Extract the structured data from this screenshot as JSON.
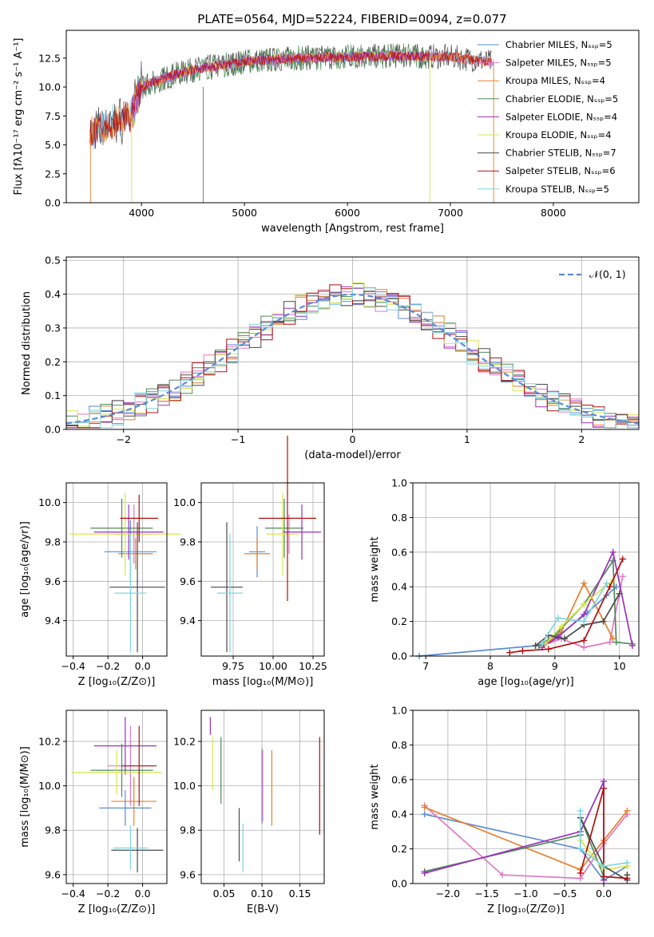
{
  "title": "PLATE=0564, MJD=52224, FIBERID=0094, z=0.077",
  "colors": {
    "chabrier_miles": "#5b8bd6",
    "salpeter_miles": "#e377c2",
    "kroupa_miles": "#e87f2a",
    "chabrier_elodie": "#4f8a5b",
    "salpeter_elodie": "#9b30b8",
    "kroupa_elodie": "#d6e84a",
    "chabrier_stelib": "#4a4a4a",
    "salpeter_stelib": "#b01010",
    "kroupa_stelib": "#7fd6e0",
    "normal_curve": "#5b8bd6"
  },
  "chart_data": [
    {
      "id": "spectrum",
      "type": "line",
      "xlabel": "wavelength [Angstrom, rest frame]",
      "ylabel": "Flux [fλ10⁻¹⁷ erg cm⁻² s⁻¹ A⁻¹]",
      "xlim": [
        3270,
        8830
      ],
      "ylim": [
        0,
        14.9
      ],
      "xticks": [
        4000,
        5000,
        6000,
        7000,
        8000
      ],
      "yticks": [
        "0.0",
        "2.5",
        "5.0",
        "7.5",
        "10.0",
        "12.5"
      ],
      "legend_position": "top-right",
      "legend": [
        {
          "label": "Chabrier MILES, Nₛₛₚ=5",
          "color_key": "chabrier_miles"
        },
        {
          "label": "Salpeter MILES, Nₛₛₚ=5",
          "color_key": "salpeter_miles"
        },
        {
          "label": "Kroupa MILES, Nₛₛₚ=4",
          "color_key": "kroupa_miles"
        },
        {
          "label": "Chabrier ELODIE, Nₛₛₚ=5",
          "color_key": "chabrier_elodie"
        },
        {
          "label": "Salpeter ELODIE, Nₛₛₚ=4",
          "color_key": "salpeter_elodie"
        },
        {
          "label": "Kroupa ELODIE, Nₛₛₚ=4",
          "color_key": "kroupa_elodie"
        },
        {
          "label": "Chabrier STELIB, Nₛₛₚ=7",
          "color_key": "chabrier_stelib"
        },
        {
          "label": "Salpeter STELIB, Nₛₛₚ=6",
          "color_key": "salpeter_stelib"
        },
        {
          "label": "Kroupa STELIB, Nₛₛₚ=5",
          "color_key": "kroupa_stelib"
        }
      ],
      "continuum": {
        "x": [
          3500,
          3700,
          3900,
          4000,
          4300,
          4500,
          5000,
          5500,
          6000,
          6500,
          7000,
          7300,
          7450
        ],
        "y": [
          6.0,
          6.8,
          7.5,
          10.0,
          11.0,
          11.5,
          12.2,
          12.5,
          12.6,
          12.7,
          12.6,
          12.3,
          12.0
        ]
      },
      "model_ranges": [
        [
          3500,
          7420
        ],
        [
          3900,
          7400
        ],
        [
          3500,
          7400
        ],
        [
          3900,
          6800
        ],
        [
          3900,
          6800
        ],
        [
          3900,
          6800
        ],
        [
          3500,
          7400
        ],
        [
          3500,
          7400
        ],
        [
          3500,
          7400
        ]
      ]
    },
    {
      "id": "residual_hist",
      "type": "line",
      "xlabel": "(data-model)/error",
      "ylabel": "Normed distribution",
      "xlim": [
        -2.5,
        2.5
      ],
      "ylim": [
        0,
        0.51
      ],
      "xticks": [
        "−2",
        "−1",
        "0",
        "1",
        "2"
      ],
      "yticks": [
        "0.0",
        "0.1",
        "0.2",
        "0.3",
        "0.4",
        "0.5"
      ],
      "legend": [
        {
          "label": "𝒩(0, 1)",
          "color_key": "normal_curve",
          "style": "dashed"
        }
      ],
      "legend_position": "top-right",
      "bin_width": 0.1
    },
    {
      "id": "age_vs_z",
      "type": "scatter",
      "xlabel": "Z [log₁₀(Z/Z⊙)]",
      "ylabel": "age  [log₁₀(age/yr)]",
      "xlim": [
        -0.44,
        0.14
      ],
      "ylim": [
        9.22,
        10.1
      ],
      "xticks": [
        "−0.4",
        "−0.2",
        "0.0"
      ],
      "yticks": [
        "9.4",
        "9.6",
        "9.8",
        "10.0"
      ],
      "points": [
        {
          "color_key": "chabrier_miles",
          "x": -0.07,
          "xerr": 0.15,
          "y": 9.75,
          "yerr": 0.16
        },
        {
          "color_key": "salpeter_miles",
          "x": -0.05,
          "xerr": 0.1,
          "y": 9.84,
          "yerr": 0.15
        },
        {
          "color_key": "kroupa_miles",
          "x": -0.04,
          "xerr": 0.1,
          "y": 9.74,
          "yerr": 0.08
        },
        {
          "color_key": "chabrier_elodie",
          "x": -0.12,
          "xerr": 0.18,
          "y": 9.87,
          "yerr": 0.15
        },
        {
          "color_key": "salpeter_elodie",
          "x": -0.08,
          "xerr": 0.2,
          "y": 9.85,
          "yerr": 0.14
        },
        {
          "color_key": "kroupa_elodie",
          "x": -0.1,
          "xerr": 0.32,
          "y": 9.84,
          "yerr": 0.21
        },
        {
          "color_key": "chabrier_stelib",
          "x": -0.03,
          "xerr": 0.16,
          "y": 9.57,
          "yerr": 0.33
        },
        {
          "color_key": "salpeter_stelib",
          "x": -0.02,
          "xerr": 0.11,
          "y": 9.92,
          "yerr": 0.12
        },
        {
          "color_key": "kroupa_stelib",
          "x": -0.07,
          "xerr": 0.09,
          "y": 9.54,
          "yerr": 0.3
        }
      ]
    },
    {
      "id": "age_vs_mass",
      "type": "scatter",
      "xlabel": "mass [log₁₀(M/M⊙)]",
      "ylabel": "",
      "xlim": [
        9.55,
        10.32
      ],
      "ylim": [
        9.22,
        10.1
      ],
      "xticks": [
        "9.75",
        "10.00",
        "10.25"
      ],
      "yticks": [
        "9.4",
        "9.6",
        "9.8",
        "10.0"
      ],
      "points": [
        {
          "color_key": "chabrier_miles",
          "x": 9.9,
          "xerr": 0.05,
          "y": 9.75,
          "yerr": 0.13
        },
        {
          "color_key": "salpeter_miles",
          "x": 10.1,
          "xerr": 0.02,
          "y": 9.84,
          "yerr": 0.1
        },
        {
          "color_key": "kroupa_miles",
          "x": 9.9,
          "xerr": 0.08,
          "y": 9.74,
          "yerr": 0.08
        },
        {
          "color_key": "chabrier_elodie",
          "x": 10.07,
          "xerr": 0.12,
          "y": 9.87,
          "yerr": 0.15
        },
        {
          "color_key": "salpeter_elodie",
          "x": 10.18,
          "xerr": 0.12,
          "y": 9.85,
          "yerr": 0.14
        },
        {
          "color_key": "kroupa_elodie",
          "x": 10.06,
          "xerr": 0.1,
          "y": 9.84,
          "yerr": 0.21
        },
        {
          "color_key": "chabrier_stelib",
          "x": 9.71,
          "xerr": 0.1,
          "y": 9.57,
          "yerr": 0.33
        },
        {
          "color_key": "salpeter_stelib",
          "x": 10.09,
          "xerr": 0.18,
          "y": 9.92,
          "yerr": 0.42
        },
        {
          "color_key": "kroupa_stelib",
          "x": 9.73,
          "xerr": 0.08,
          "y": 9.54,
          "yerr": 0.3
        }
      ]
    },
    {
      "id": "mass_weight_vs_age",
      "type": "line",
      "xlabel": "age  [log₁₀(age/yr)]",
      "ylabel": "mass weight",
      "xlim": [
        6.8,
        10.3
      ],
      "ylim": [
        0,
        1.0
      ],
      "xticks": [
        "7",
        "8",
        "9",
        "10"
      ],
      "yticks": [
        "0.0",
        "0.2",
        "0.4",
        "0.6",
        "0.8",
        "1.0"
      ],
      "series": [
        {
          "color_key": "chabrier_miles",
          "x": [
            6.9,
            8.7,
            9.0,
            9.5,
            9.8,
            9.95
          ],
          "y": [
            0.0,
            0.06,
            0.1,
            0.25,
            0.35,
            0.4
          ]
        },
        {
          "color_key": "salpeter_miles",
          "x": [
            8.8,
            9.1,
            9.45,
            9.85,
            10.05
          ],
          "y": [
            0.06,
            0.1,
            0.05,
            0.08,
            0.46
          ]
        },
        {
          "color_key": "kroupa_miles",
          "x": [
            8.8,
            9.1,
            9.45,
            9.9
          ],
          "y": [
            0.05,
            0.14,
            0.42,
            0.1
          ]
        },
        {
          "color_key": "chabrier_elodie",
          "x": [
            8.75,
            9.0,
            9.45,
            9.9,
            9.95,
            10.2
          ],
          "y": [
            0.06,
            0.12,
            0.3,
            0.55,
            0.08,
            0.07
          ]
        },
        {
          "color_key": "salpeter_elodie",
          "x": [
            8.8,
            9.05,
            9.45,
            9.9,
            10.2
          ],
          "y": [
            0.05,
            0.11,
            0.24,
            0.6,
            0.06
          ]
        },
        {
          "color_key": "kroupa_elodie",
          "x": [
            8.85,
            9.1,
            9.45,
            9.9
          ],
          "y": [
            0.07,
            0.17,
            0.3,
            0.44
          ]
        },
        {
          "color_key": "chabrier_stelib",
          "x": [
            8.7,
            8.9,
            9.15,
            9.45,
            9.75,
            10.0
          ],
          "y": [
            0.06,
            0.12,
            0.1,
            0.18,
            0.2,
            0.36
          ]
        },
        {
          "color_key": "salpeter_stelib",
          "x": [
            8.3,
            8.5,
            8.9,
            9.45,
            9.85,
            10.05
          ],
          "y": [
            0.02,
            0.03,
            0.04,
            0.09,
            0.4,
            0.56
          ]
        },
        {
          "color_key": "kroupa_stelib",
          "x": [
            8.8,
            9.05,
            9.45,
            9.8
          ],
          "y": [
            0.07,
            0.22,
            0.2,
            0.42
          ]
        }
      ]
    },
    {
      "id": "mass_vs_z",
      "type": "scatter",
      "xlabel": "Z [log₁₀(Z/Z⊙)]",
      "ylabel": "mass [log₁₀(M/M⊙)]",
      "xlim": [
        -0.44,
        0.14
      ],
      "ylim": [
        9.56,
        10.34
      ],
      "xticks": [
        "−0.4",
        "−0.2",
        "0.0"
      ],
      "yticks": [
        "9.6",
        "9.8",
        "10.0",
        "10.2"
      ],
      "points": [
        {
          "color_key": "chabrier_miles",
          "x": -0.1,
          "xerr": 0.15,
          "y": 9.9,
          "yerr": 0.08
        },
        {
          "color_key": "salpeter_miles",
          "x": -0.07,
          "xerr": 0.13,
          "y": 10.09,
          "yerr": 0.18
        },
        {
          "color_key": "kroupa_miles",
          "x": -0.05,
          "xerr": 0.13,
          "y": 9.93,
          "yerr": 0.11
        },
        {
          "color_key": "chabrier_elodie",
          "x": -0.12,
          "xerr": 0.18,
          "y": 10.07,
          "yerr": 0.12
        },
        {
          "color_key": "salpeter_elodie",
          "x": -0.1,
          "xerr": 0.18,
          "y": 10.18,
          "yerr": 0.13
        },
        {
          "color_key": "kroupa_elodie",
          "x": -0.15,
          "xerr": 0.26,
          "y": 10.06,
          "yerr": 0.1
        },
        {
          "color_key": "chabrier_stelib",
          "x": -0.03,
          "xerr": 0.15,
          "y": 9.71,
          "yerr": 0.1
        },
        {
          "color_key": "salpeter_stelib",
          "x": -0.02,
          "xerr": 0.1,
          "y": 10.09,
          "yerr": 0.18
        },
        {
          "color_key": "kroupa_stelib",
          "x": -0.07,
          "xerr": 0.1,
          "y": 9.72,
          "yerr": 0.1
        }
      ]
    },
    {
      "id": "mass_vs_ebv",
      "type": "scatter",
      "xlabel": "E(B-V)",
      "ylabel": "",
      "xlim": [
        0.02,
        0.182
      ],
      "ylim": [
        9.56,
        10.34
      ],
      "xticks": [
        "0.05",
        "0.10",
        "0.15"
      ],
      "yticks": [
        "9.6",
        "9.8",
        "10.0",
        "10.2"
      ],
      "points": [
        {
          "color_key": "chabrier_miles",
          "x": 0.1,
          "xerr": 0,
          "y": 10.0,
          "yerr": 0.17
        },
        {
          "color_key": "salpeter_miles",
          "x": 0.101,
          "xerr": 0,
          "y": 10.0,
          "yerr": 0.16
        },
        {
          "color_key": "kroupa_miles",
          "x": 0.113,
          "xerr": 0,
          "y": 9.99,
          "yerr": 0.17
        },
        {
          "color_key": "chabrier_elodie",
          "x": 0.046,
          "xerr": 0,
          "y": 10.07,
          "yerr": 0.15
        },
        {
          "color_key": "salpeter_elodie",
          "x": 0.032,
          "xerr": 0,
          "y": 10.27,
          "yerr": 0.04
        },
        {
          "color_key": "kroupa_elodie",
          "x": 0.035,
          "xerr": 0,
          "y": 10.1,
          "yerr": 0.12
        },
        {
          "color_key": "chabrier_stelib",
          "x": 0.07,
          "xerr": 0,
          "y": 9.78,
          "yerr": 0.12
        },
        {
          "color_key": "salpeter_stelib",
          "x": 0.176,
          "xerr": 0,
          "y": 10.0,
          "yerr": 0.22
        },
        {
          "color_key": "kroupa_stelib",
          "x": 0.075,
          "xerr": 0,
          "y": 9.72,
          "yerr": 0.11
        }
      ]
    },
    {
      "id": "mass_weight_vs_z",
      "type": "line",
      "xlabel": "Z [log₁₀(Z/Z⊙)]",
      "ylabel": "mass weight",
      "xlim": [
        -2.45,
        0.45
      ],
      "ylim": [
        0,
        1.0
      ],
      "xticks": [
        "−2.0",
        "−1.5",
        "−1.0",
        "−0.5",
        "0.0"
      ],
      "yticks": [
        "0.0",
        "0.2",
        "0.4",
        "0.6",
        "0.8",
        "1.0"
      ],
      "series": [
        {
          "color_key": "chabrier_miles",
          "x": [
            -2.3,
            -0.3,
            0.0,
            0.3
          ],
          "y": [
            0.4,
            0.2,
            0.02,
            0.1
          ]
        },
        {
          "color_key": "salpeter_miles",
          "x": [
            -2.3,
            -1.3,
            -0.3,
            0.0,
            0.3
          ],
          "y": [
            0.45,
            0.05,
            0.03,
            0.23,
            0.4
          ]
        },
        {
          "color_key": "kroupa_miles",
          "x": [
            -2.3,
            -0.3,
            0.0,
            0.3
          ],
          "y": [
            0.44,
            0.08,
            0.25,
            0.42
          ]
        },
        {
          "color_key": "chabrier_elodie",
          "x": [
            -2.3,
            -0.3,
            -0.3,
            0.0
          ],
          "y": [
            0.07,
            0.28,
            0.38,
            0.04
          ]
        },
        {
          "color_key": "salpeter_elodie",
          "x": [
            -2.3,
            -0.3,
            0.0,
            0.0
          ],
          "y": [
            0.06,
            0.3,
            0.59,
            0.02
          ]
        },
        {
          "color_key": "kroupa_elodie",
          "x": [
            -0.3,
            0.0,
            0.3
          ],
          "y": [
            0.25,
            0.08,
            0.1
          ]
        },
        {
          "color_key": "chabrier_stelib",
          "x": [
            -0.3,
            0.0,
            0.3,
            0.3
          ],
          "y": [
            0.38,
            0.1,
            0.02,
            0.05
          ]
        },
        {
          "color_key": "salpeter_stelib",
          "x": [
            -0.3,
            0.0,
            0.0,
            0.3
          ],
          "y": [
            0.06,
            0.55,
            0.04,
            0.03
          ]
        },
        {
          "color_key": "kroupa_stelib",
          "x": [
            -0.3,
            -0.3,
            0.0,
            0.3
          ],
          "y": [
            0.42,
            0.2,
            0.1,
            0.12
          ]
        }
      ]
    }
  ]
}
